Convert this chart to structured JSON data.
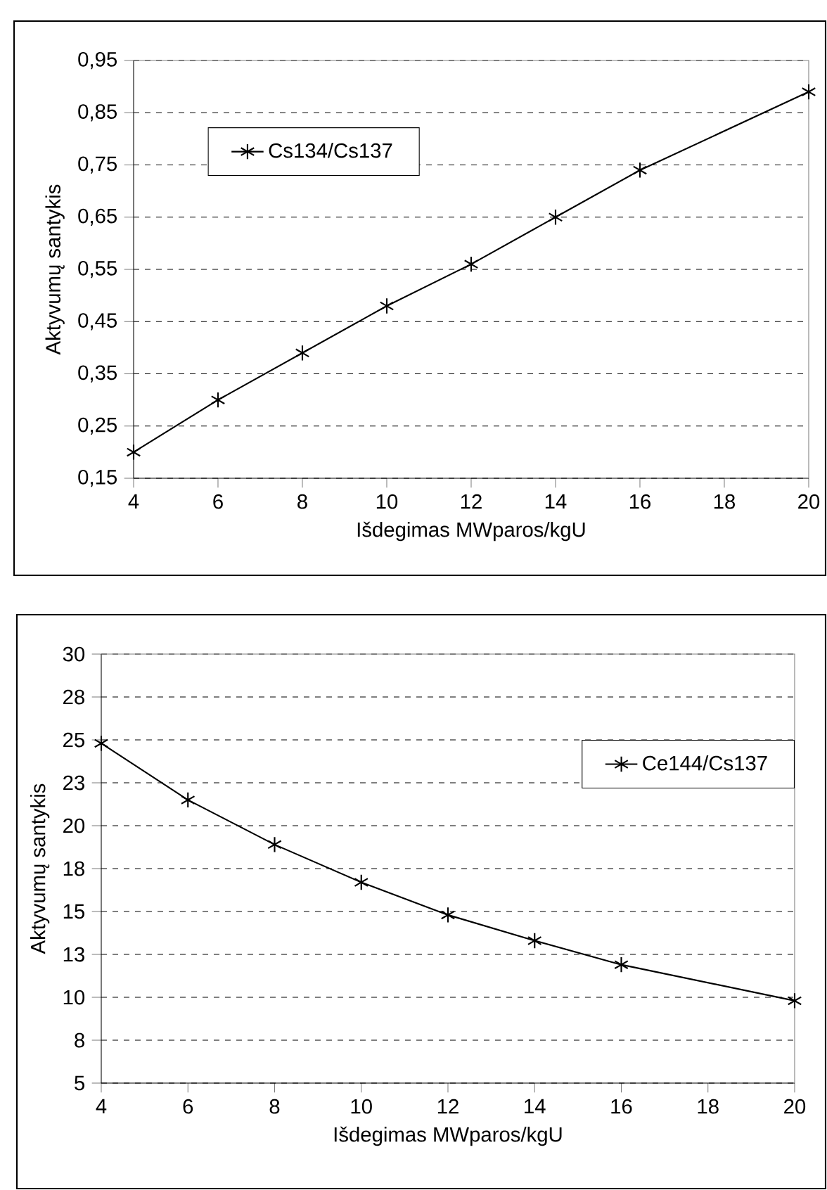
{
  "chart_data": [
    {
      "type": "line",
      "xlabel": "Išdegimas MWparos/kgU",
      "ylabel": "Aktyvumų santykis",
      "x": [
        4,
        6,
        8,
        10,
        12,
        14,
        16,
        20
      ],
      "series": [
        {
          "name": "Cs134/Cs137",
          "color": "#000000",
          "values": [
            0.2,
            0.3,
            0.39,
            0.48,
            0.56,
            0.65,
            0.74,
            0.89
          ]
        }
      ],
      "xlim": [
        4,
        20
      ],
      "xticks": [
        4,
        6,
        8,
        10,
        12,
        14,
        16,
        18,
        20
      ],
      "ylim": [
        0.15,
        0.95
      ],
      "yticks": [
        {
          "value": 0.15,
          "label": "0,15"
        },
        {
          "value": 0.25,
          "label": "0,25"
        },
        {
          "value": 0.35,
          "label": "0,35"
        },
        {
          "value": 0.45,
          "label": "0,45"
        },
        {
          "value": 0.55,
          "label": "0,55"
        },
        {
          "value": 0.65,
          "label": "0,65"
        },
        {
          "value": 0.75,
          "label": "0,75"
        },
        {
          "value": 0.85,
          "label": "0,85"
        },
        {
          "value": 0.95,
          "label": "0,95"
        }
      ],
      "grid": "y",
      "legend": "top left",
      "marker": "cross",
      "line_style": "solid"
    },
    {
      "type": "line",
      "xlabel": "Išdegimas MWparos/kgU",
      "ylabel": "Aktyvumų santykis",
      "x": [
        4,
        6,
        8,
        10,
        12,
        14,
        16,
        20
      ],
      "series": [
        {
          "name": "Ce144/Cs137",
          "color": "#000000",
          "values": [
            24.8,
            21.5,
            18.9,
            16.7,
            14.8,
            13.3,
            11.9,
            9.8
          ]
        }
      ],
      "xlim": [
        4,
        20
      ],
      "xticks": [
        4,
        6,
        8,
        10,
        12,
        14,
        16,
        18,
        20
      ],
      "ylim": [
        5,
        30
      ],
      "yticks": [
        5,
        {
          "value": 7.5,
          "label": "8"
        },
        10,
        {
          "value": 12.5,
          "label": "13"
        },
        15,
        {
          "value": 17.5,
          "label": "18"
        },
        20,
        {
          "value": 22.5,
          "label": "23"
        },
        25,
        {
          "value": 27.5,
          "label": "28"
        },
        30
      ],
      "grid": "y",
      "legend": "top right",
      "marker": "cross",
      "line_style": "solid"
    }
  ]
}
